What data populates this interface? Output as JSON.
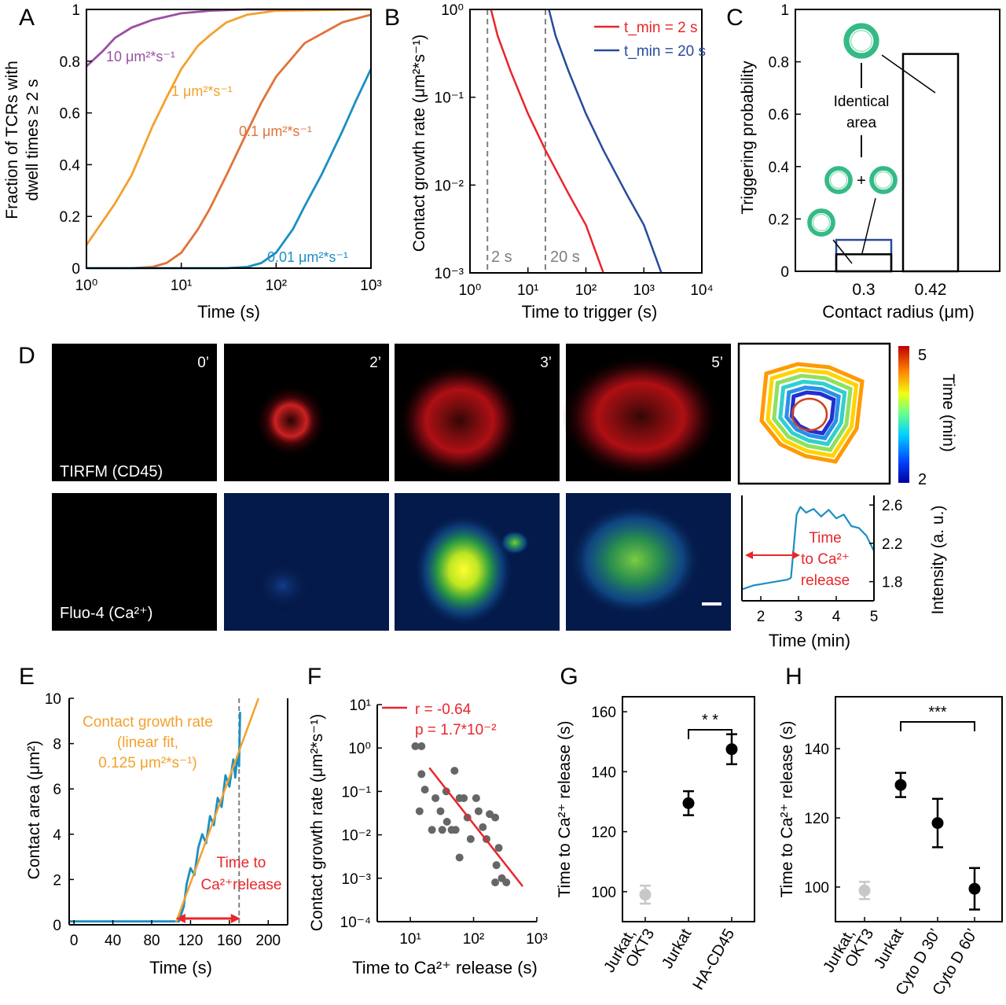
{
  "panels": {
    "A": {
      "letter": "A",
      "xlabel": "Time (s)",
      "ylabel_l1": "Fraction of TCRs with",
      "ylabel_l2": "dwell times ≥ 2 s"
    },
    "B": {
      "letter": "B",
      "xlabel": "Time to trigger (s)",
      "ylabel": "Contact growth rate (μm²*s⁻¹)",
      "vline1": "2 s",
      "vline2": "20 s"
    },
    "C": {
      "letter": "C",
      "xlabel": "Contact radius (μm)",
      "ylabel": "Triggering probability",
      "ann_l1": "Identical",
      "ann_l2": "area",
      "plus": "+"
    },
    "D": {
      "letter": "D",
      "times": [
        "0’",
        "2’",
        "3’",
        "5’"
      ],
      "row1": "TIRFM (CD45)",
      "row2": "Fluo-4 (Ca²⁺)",
      "cbar_label": "Time (min)",
      "cbar_max": "5",
      "cbar_min": "2",
      "trace_xlabel": "Time (min)",
      "trace_ylabel": "Intensity (a. u.)",
      "trace_ann": [
        "Time",
        "to Ca²⁺",
        "release"
      ]
    },
    "E": {
      "letter": "E",
      "xlabel": "Time (s)",
      "ylabel": "Contact area (μm²)",
      "fit_ann": [
        "Contact growth rate",
        "(linear fit,",
        "0.125 μm²*s⁻¹)"
      ],
      "time_ann": [
        "Time to",
        "Ca²⁺release"
      ]
    },
    "F": {
      "letter": "F",
      "xlabel": "Time to Ca²⁺ release (s)",
      "ylabel": "Contact growth rate (μm²*s⁻¹)",
      "legend_r": "r = -0.64",
      "legend_p": "p = 1.7*10⁻²"
    },
    "G": {
      "letter": "G",
      "ylabel": "Time to Ca²⁺ release (s)",
      "sig": "* *"
    },
    "H": {
      "letter": "H",
      "ylabel": "Time to Ca²⁺ release (s)",
      "sig": "***"
    }
  },
  "colors": {
    "purple": "#9b4fa3",
    "orange": "#f3a12c",
    "darkorange": "#e0733a",
    "blue": "#1b8fc2",
    "red": "#e8262b",
    "navy": "#274b9b",
    "gray": "#7f7f7f"
  },
  "chart_data": [
    {
      "panel": "A",
      "type": "line",
      "xscale": "log",
      "xlim": [
        1,
        1000
      ],
      "ylim": [
        0,
        1
      ],
      "xticks": [
        "10⁰",
        "10¹",
        "10²",
        "10³"
      ],
      "yticks": [
        "0",
        "0.2",
        "0.4",
        "0.6",
        "0.8",
        "1"
      ],
      "series": [
        {
          "name": "10 μm²*s⁻¹",
          "x": [
            1,
            1.5,
            2,
            3,
            5,
            10,
            20,
            50,
            1000
          ],
          "y": [
            0.78,
            0.84,
            0.89,
            0.93,
            0.96,
            0.985,
            0.995,
            1.0,
            1.0
          ]
        },
        {
          "name": "1 μm²*s⁻¹",
          "x": [
            1,
            2,
            3,
            5,
            7,
            10,
            15,
            20,
            30,
            50,
            100,
            1000
          ],
          "y": [
            0.09,
            0.25,
            0.36,
            0.55,
            0.66,
            0.77,
            0.86,
            0.9,
            0.95,
            0.98,
            0.995,
            1.0
          ]
        },
        {
          "name": "0.1 μm²*s⁻¹",
          "x": [
            1,
            3,
            5,
            7,
            10,
            15,
            20,
            30,
            50,
            70,
            100,
            200,
            500,
            1000
          ],
          "y": [
            0,
            0,
            0.005,
            0.02,
            0.06,
            0.15,
            0.23,
            0.36,
            0.53,
            0.64,
            0.74,
            0.87,
            0.95,
            0.98
          ]
        },
        {
          "name": "0.01 μm²*s⁻¹",
          "x": [
            1,
            30,
            50,
            70,
            100,
            150,
            200,
            300,
            500,
            700,
            1000
          ],
          "y": [
            0,
            0,
            0.005,
            0.02,
            0.06,
            0.15,
            0.24,
            0.36,
            0.53,
            0.65,
            0.77
          ]
        }
      ]
    },
    {
      "panel": "B",
      "type": "line",
      "xscale": "log",
      "yscale": "log",
      "xlim": [
        1,
        10000
      ],
      "ylim": [
        0.001,
        1
      ],
      "xticks": [
        "10⁰",
        "10¹",
        "10²",
        "10³",
        "10⁴"
      ],
      "yticks": [
        "10⁻³",
        "10⁻²",
        "10⁻¹",
        "10⁰"
      ],
      "vlines": [
        2,
        20
      ],
      "series": [
        {
          "name": "t_min = 2 s",
          "x": [
            2.3,
            3,
            5,
            10,
            20,
            50,
            100,
            200
          ],
          "y": [
            1.0,
            0.5,
            0.2,
            0.065,
            0.025,
            0.008,
            0.0035,
            0.001
          ]
        },
        {
          "name": "t_min = 20 s",
          "x": [
            23,
            30,
            50,
            100,
            200,
            500,
            1000,
            2000
          ],
          "y": [
            1.0,
            0.5,
            0.2,
            0.065,
            0.025,
            0.008,
            0.0035,
            0.001
          ]
        }
      ]
    },
    {
      "panel": "C",
      "type": "bar",
      "categories": [
        "0.3",
        "0.42"
      ],
      "ylim": [
        0,
        1
      ],
      "yticks": [
        "0",
        "0.2",
        "0.4",
        "0.6",
        "0.8",
        "1"
      ],
      "values": [
        0.065,
        0.83
      ],
      "extra_bar": {
        "category": "0.3",
        "value": 0.12
      }
    },
    {
      "panel": "D-trace",
      "type": "line",
      "xlim": [
        1.5,
        5
      ],
      "ylim": [
        1.6,
        2.7
      ],
      "xticks": [
        "2",
        "3",
        "4",
        "5"
      ],
      "yticks": [
        "1.8",
        "2.2",
        "2.6"
      ],
      "x": [
        1.5,
        1.8,
        2.1,
        2.4,
        2.7,
        2.8,
        2.95,
        3.05,
        3.2,
        3.4,
        3.6,
        3.8,
        4.0,
        4.2,
        4.4,
        4.6,
        4.8,
        5.0
      ],
      "y": [
        1.72,
        1.76,
        1.78,
        1.8,
        1.82,
        1.84,
        2.5,
        2.58,
        2.52,
        2.56,
        2.48,
        2.55,
        2.46,
        2.5,
        2.38,
        2.36,
        2.28,
        2.12
      ]
    },
    {
      "panel": "E",
      "type": "line",
      "xlim": [
        -5,
        220
      ],
      "ylim": [
        0,
        10
      ],
      "xticks": [
        "0",
        "40",
        "80",
        "120",
        "160",
        "200"
      ],
      "yticks": [
        "0",
        "2",
        "4",
        "6",
        "8",
        "10"
      ],
      "vline": 170,
      "arrow": [
        105,
        168
      ],
      "series": [
        {
          "name": "data",
          "x": [
            -5,
            108,
            113,
            116,
            120,
            124,
            128,
            132,
            136,
            140,
            144,
            148,
            152,
            156,
            160,
            164,
            166,
            168,
            170,
            171
          ],
          "y": [
            0.15,
            0.15,
            0.8,
            1.8,
            2.5,
            2.2,
            3.4,
            4.0,
            3.6,
            4.8,
            4.4,
            5.6,
            5.2,
            6.6,
            6.1,
            7.3,
            6.5,
            7.4,
            7.0,
            9.4
          ]
        },
        {
          "name": "fit",
          "x": [
            105,
            190
          ],
          "y": [
            0.1,
            10
          ]
        }
      ]
    },
    {
      "panel": "F",
      "type": "scatter",
      "xscale": "log",
      "yscale": "log",
      "xlim": [
        3,
        1000
      ],
      "ylim": [
        0.0001,
        10
      ],
      "xticks": [
        "10¹",
        "10²",
        "10³"
      ],
      "yticks": [
        "10⁻⁴",
        "10⁻³",
        "10⁻²",
        "10⁻¹",
        "10⁰",
        "10¹"
      ],
      "points": [
        [
          12,
          1.1
        ],
        [
          15,
          1.1
        ],
        [
          15,
          0.25
        ],
        [
          17,
          0.11
        ],
        [
          14,
          0.035
        ],
        [
          25,
          0.07
        ],
        [
          30,
          0.035
        ],
        [
          37,
          0.1
        ],
        [
          50,
          0.3
        ],
        [
          22,
          0.013
        ],
        [
          32,
          0.013
        ],
        [
          45,
          0.013
        ],
        [
          52,
          0.013
        ],
        [
          38,
          0.02
        ],
        [
          60,
          0.07
        ],
        [
          70,
          0.07
        ],
        [
          80,
          0.025
        ],
        [
          110,
          0.07
        ],
        [
          120,
          0.035
        ],
        [
          140,
          0.015
        ],
        [
          180,
          0.03
        ],
        [
          220,
          0.025
        ],
        [
          60,
          0.003
        ],
        [
          90,
          0.008
        ],
        [
          160,
          0.008
        ],
        [
          230,
          0.002
        ],
        [
          250,
          0.005
        ],
        [
          280,
          0.001
        ],
        [
          330,
          0.0008
        ],
        [
          220,
          0.0008
        ]
      ],
      "fit": {
        "x": [
          20,
          600
        ],
        "y": [
          0.35,
          0.00065
        ]
      }
    },
    {
      "panel": "G",
      "type": "scatter",
      "categories": [
        "Jurkat, OKT3",
        "Jurkat",
        "HA-CD45"
      ],
      "ylim": [
        90,
        165
      ],
      "yticks": [
        "100",
        "120",
        "140",
        "160"
      ],
      "values": [
        99,
        129.5,
        147.5
      ],
      "errors": [
        3,
        4,
        5
      ]
    },
    {
      "panel": "H",
      "type": "scatter",
      "categories": [
        "Jurkat, OKT3",
        "Jurkat",
        "Cyto D 30’",
        "Cyto D 60’"
      ],
      "ylim": [
        90,
        155
      ],
      "yticks": [
        "100",
        "120",
        "140"
      ],
      "values": [
        99,
        129.5,
        118.5,
        99.5
      ],
      "errors": [
        2.5,
        3.5,
        7,
        6
      ]
    }
  ]
}
